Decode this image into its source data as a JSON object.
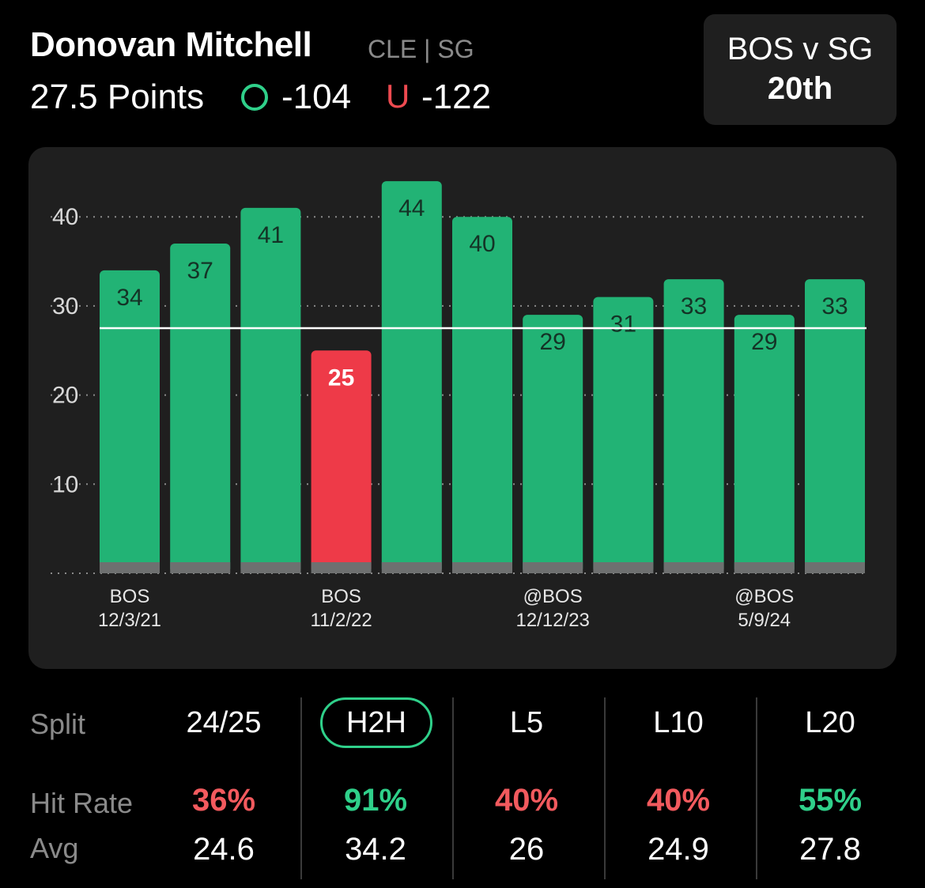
{
  "header": {
    "player_name": "Donovan Mitchell",
    "team_position": "CLE | SG",
    "prop_line": "27.5 Points",
    "over_label": "O",
    "over_odds": "-104",
    "under_label": "U",
    "under_odds": "-122",
    "matchup_title": "BOS v SG",
    "matchup_rank": "20th"
  },
  "colors": {
    "over_green": "#2fd08a",
    "bar_green": "#22b375",
    "bar_red": "#ee3a48",
    "under_red": "#ee4a50",
    "hit_green": "#2fd08a",
    "hit_red": "#f25a5e"
  },
  "chart_data": {
    "type": "bar",
    "values": [
      34,
      37,
      41,
      25,
      44,
      40,
      29,
      31,
      33,
      29,
      33
    ],
    "value_labels": [
      "34",
      "37",
      "41",
      "25",
      "44",
      "40",
      "29",
      "31",
      "33",
      "29",
      "33"
    ],
    "hit": [
      true,
      true,
      true,
      false,
      true,
      true,
      true,
      true,
      true,
      true,
      true
    ],
    "x_tick_labels": [
      {
        "index": 0,
        "line1": "BOS",
        "line2": "12/3/21"
      },
      {
        "index": 3,
        "line1": "BOS",
        "line2": "11/2/22"
      },
      {
        "index": 6,
        "line1": "@BOS",
        "line2": "12/12/23"
      },
      {
        "index": 9,
        "line1": "@BOS",
        "line2": "5/9/24"
      }
    ],
    "y_ticks": [
      "10",
      "20",
      "30",
      "40"
    ],
    "ylim": [
      0,
      44
    ],
    "reference_line": 27.5
  },
  "stats": {
    "split_label": "Split",
    "hit_rate_label": "Hit Rate",
    "avg_label": "Avg",
    "columns": [
      {
        "split": "24/25",
        "hit_rate": "36%",
        "avg": "24.6",
        "hit_color": "red",
        "active": false
      },
      {
        "split": "H2H",
        "hit_rate": "91%",
        "avg": "34.2",
        "hit_color": "green",
        "active": true
      },
      {
        "split": "L5",
        "hit_rate": "40%",
        "avg": "26",
        "hit_color": "red",
        "active": false
      },
      {
        "split": "L10",
        "hit_rate": "40%",
        "avg": "24.9",
        "hit_color": "red",
        "active": false
      },
      {
        "split": "L20",
        "hit_rate": "55%",
        "avg": "27.8",
        "hit_color": "green",
        "active": false
      }
    ]
  }
}
